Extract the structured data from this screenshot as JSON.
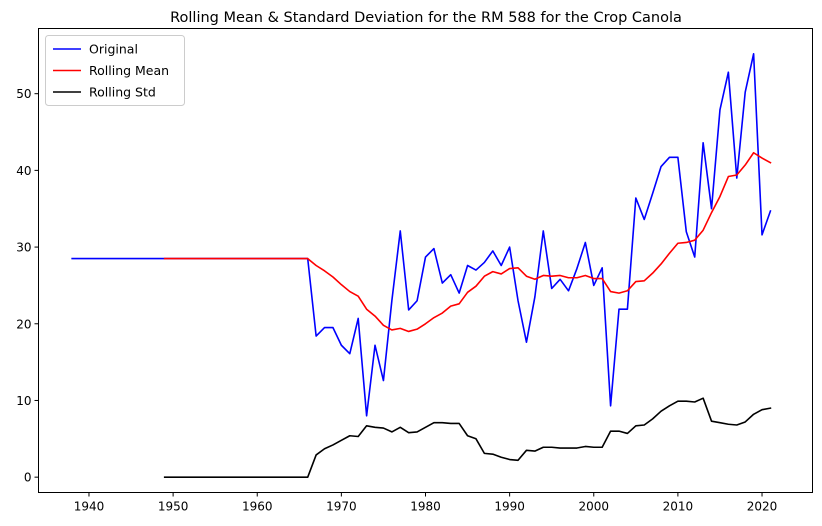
{
  "chart_data": {
    "type": "line",
    "title": "Rolling Mean & Standard Deviation for the RM 588 for the Crop Canola",
    "xlabel": "",
    "ylabel": "",
    "xlim": [
      1934,
      2026
    ],
    "ylim": [
      -2,
      58.5
    ],
    "xticks": [
      1940,
      1950,
      1960,
      1970,
      1980,
      1990,
      2000,
      2010,
      2020
    ],
    "yticks": [
      0,
      10,
      20,
      30,
      40,
      50
    ],
    "grid": false,
    "legend_position": "top-left",
    "series": [
      {
        "name": "Original",
        "color": "#0000ff",
        "points": [
          [
            1938,
            28.5
          ],
          [
            1966,
            28.5
          ],
          [
            1967,
            18.4
          ],
          [
            1968,
            19.5
          ],
          [
            1969,
            19.5
          ],
          [
            1970,
            17.2
          ],
          [
            1971,
            16.1
          ],
          [
            1972,
            20.7
          ],
          [
            1973,
            8.0
          ],
          [
            1974,
            17.2
          ],
          [
            1975,
            12.6
          ],
          [
            1976,
            23.0
          ],
          [
            1977,
            32.1
          ],
          [
            1978,
            21.8
          ],
          [
            1979,
            23.0
          ],
          [
            1980,
            28.7
          ],
          [
            1981,
            29.8
          ],
          [
            1982,
            25.3
          ],
          [
            1983,
            26.4
          ],
          [
            1984,
            24.0
          ],
          [
            1985,
            27.6
          ],
          [
            1986,
            27.0
          ],
          [
            1987,
            28.0
          ],
          [
            1988,
            29.5
          ],
          [
            1989,
            27.6
          ],
          [
            1990,
            30.0
          ],
          [
            1991,
            23.0
          ],
          [
            1992,
            17.6
          ],
          [
            1993,
            23.5
          ],
          [
            1994,
            32.1
          ],
          [
            1995,
            24.6
          ],
          [
            1996,
            25.8
          ],
          [
            1997,
            24.3
          ],
          [
            1998,
            27.2
          ],
          [
            1999,
            30.6
          ],
          [
            2000,
            25.0
          ],
          [
            2001,
            27.3
          ],
          [
            2002,
            9.3
          ],
          [
            2003,
            21.9
          ],
          [
            2004,
            21.9
          ],
          [
            2005,
            36.4
          ],
          [
            2006,
            33.6
          ],
          [
            2007,
            37.0
          ],
          [
            2008,
            40.5
          ],
          [
            2009,
            41.7
          ],
          [
            2010,
            41.7
          ],
          [
            2011,
            32.0
          ],
          [
            2012,
            28.7
          ],
          [
            2013,
            43.6
          ],
          [
            2014,
            35.0
          ],
          [
            2015,
            47.9
          ],
          [
            2016,
            52.8
          ],
          [
            2017,
            39.0
          ],
          [
            2018,
            50.2
          ],
          [
            2019,
            55.2
          ],
          [
            2020,
            31.6
          ],
          [
            2021,
            34.7
          ]
        ]
      },
      {
        "name": "Rolling Mean",
        "color": "#ff0000",
        "points": [
          [
            1949,
            28.5
          ],
          [
            1966,
            28.5
          ],
          [
            1967,
            27.6
          ],
          [
            1968,
            26.9
          ],
          [
            1969,
            26.1
          ],
          [
            1970,
            25.1
          ],
          [
            1971,
            24.2
          ],
          [
            1972,
            23.6
          ],
          [
            1973,
            21.9
          ],
          [
            1974,
            21.0
          ],
          [
            1975,
            19.8
          ],
          [
            1976,
            19.2
          ],
          [
            1977,
            19.4
          ],
          [
            1978,
            19.0
          ],
          [
            1979,
            19.3
          ],
          [
            1980,
            20.0
          ],
          [
            1981,
            20.8
          ],
          [
            1982,
            21.4
          ],
          [
            1983,
            22.3
          ],
          [
            1984,
            22.6
          ],
          [
            1985,
            24.1
          ],
          [
            1986,
            24.9
          ],
          [
            1987,
            26.2
          ],
          [
            1988,
            26.8
          ],
          [
            1989,
            26.5
          ],
          [
            1990,
            27.2
          ],
          [
            1991,
            27.3
          ],
          [
            1992,
            26.2
          ],
          [
            1993,
            25.8
          ],
          [
            1994,
            26.3
          ],
          [
            1995,
            26.2
          ],
          [
            1996,
            26.3
          ],
          [
            1997,
            26.0
          ],
          [
            1998,
            26.0
          ],
          [
            1999,
            26.3
          ],
          [
            2000,
            25.9
          ],
          [
            2001,
            25.9
          ],
          [
            2002,
            24.2
          ],
          [
            2003,
            24.0
          ],
          [
            2004,
            24.3
          ],
          [
            2005,
            25.5
          ],
          [
            2006,
            25.6
          ],
          [
            2007,
            26.6
          ],
          [
            2008,
            27.8
          ],
          [
            2009,
            29.2
          ],
          [
            2010,
            30.5
          ],
          [
            2011,
            30.6
          ],
          [
            2012,
            30.9
          ],
          [
            2013,
            32.2
          ],
          [
            2014,
            34.5
          ],
          [
            2015,
            36.6
          ],
          [
            2016,
            39.2
          ],
          [
            2017,
            39.4
          ],
          [
            2018,
            40.7
          ],
          [
            2019,
            42.3
          ],
          [
            2020,
            41.6
          ],
          [
            2021,
            41.0
          ]
        ]
      },
      {
        "name": "Rolling Std",
        "color": "#000000",
        "points": [
          [
            1949,
            0
          ],
          [
            1966,
            0
          ],
          [
            1967,
            2.9
          ],
          [
            1968,
            3.7
          ],
          [
            1969,
            4.2
          ],
          [
            1970,
            4.8
          ],
          [
            1971,
            5.4
          ],
          [
            1972,
            5.3
          ],
          [
            1973,
            6.7
          ],
          [
            1974,
            6.5
          ],
          [
            1975,
            6.4
          ],
          [
            1976,
            5.9
          ],
          [
            1977,
            6.5
          ],
          [
            1978,
            5.8
          ],
          [
            1979,
            5.9
          ],
          [
            1980,
            6.5
          ],
          [
            1981,
            7.1
          ],
          [
            1982,
            7.1
          ],
          [
            1983,
            7.0
          ],
          [
            1984,
            7.0
          ],
          [
            1985,
            5.4
          ],
          [
            1986,
            5.0
          ],
          [
            1987,
            3.1
          ],
          [
            1988,
            3.0
          ],
          [
            1989,
            2.6
          ],
          [
            1990,
            2.3
          ],
          [
            1991,
            2.2
          ],
          [
            1992,
            3.5
          ],
          [
            1993,
            3.4
          ],
          [
            1994,
            3.9
          ],
          [
            1995,
            3.9
          ],
          [
            1996,
            3.8
          ],
          [
            1997,
            3.8
          ],
          [
            1998,
            3.8
          ],
          [
            1999,
            4.0
          ],
          [
            2000,
            3.9
          ],
          [
            2001,
            3.9
          ],
          [
            2002,
            6.0
          ],
          [
            2003,
            6.0
          ],
          [
            2004,
            5.7
          ],
          [
            2005,
            6.7
          ],
          [
            2006,
            6.8
          ],
          [
            2007,
            7.6
          ],
          [
            2008,
            8.6
          ],
          [
            2009,
            9.3
          ],
          [
            2010,
            9.9
          ],
          [
            2011,
            9.9
          ],
          [
            2012,
            9.8
          ],
          [
            2013,
            10.3
          ],
          [
            2014,
            7.3
          ],
          [
            2015,
            7.1
          ],
          [
            2016,
            6.9
          ],
          [
            2017,
            6.8
          ],
          [
            2018,
            7.2
          ],
          [
            2019,
            8.2
          ],
          [
            2020,
            8.8
          ],
          [
            2021,
            9.0
          ]
        ]
      }
    ]
  }
}
